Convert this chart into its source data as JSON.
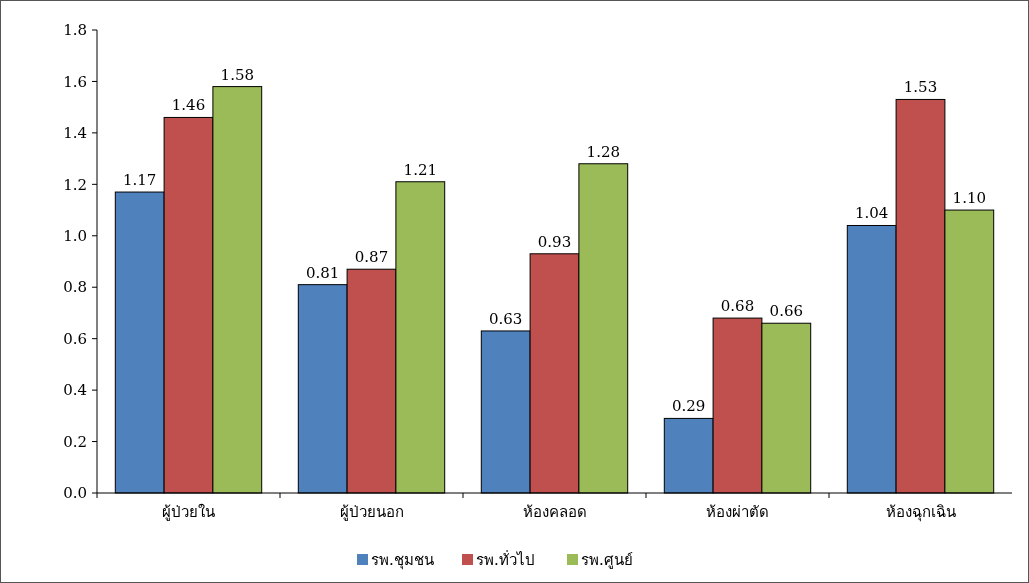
{
  "chart_data": {
    "type": "bar",
    "categories": [
      "ผู้ป่วยใน",
      "ผู้ป่วยนอก",
      "ห้องคลอด",
      "ห้องผ่าตัด",
      "ห้องฉุกเฉิน"
    ],
    "series": [
      {
        "name": "รพ.ชุมชน",
        "color": "#4f81bd",
        "values": [
          1.17,
          0.81,
          0.63,
          0.29,
          1.04
        ],
        "value_labels": [
          "1.17",
          "0.81",
          "0.63",
          "0.29",
          "1.04"
        ]
      },
      {
        "name": "รพ.ทั่วไป",
        "color": "#c0504d",
        "values": [
          1.46,
          0.87,
          0.93,
          0.68,
          1.53
        ],
        "value_labels": [
          "1.46",
          "0.87",
          "0.93",
          "0.68",
          "1.53"
        ]
      },
      {
        "name": "รพ.ศูนย์",
        "color": "#9bbb59",
        "values": [
          1.58,
          1.21,
          1.28,
          0.66,
          1.1
        ],
        "value_labels": [
          "1.58",
          "1.21",
          "1.28",
          "0.66",
          "1.10"
        ]
      }
    ],
    "ylim": [
      0,
      1.8
    ],
    "yticks": [
      {
        "value": 0,
        "label": "0.0"
      },
      0.2,
      0.4,
      0.6,
      0.8,
      {
        "value": 1,
        "label": "1.0"
      },
      1.2,
      1.4,
      1.6,
      1.8
    ],
    "grid": false,
    "legend": "bottom"
  }
}
